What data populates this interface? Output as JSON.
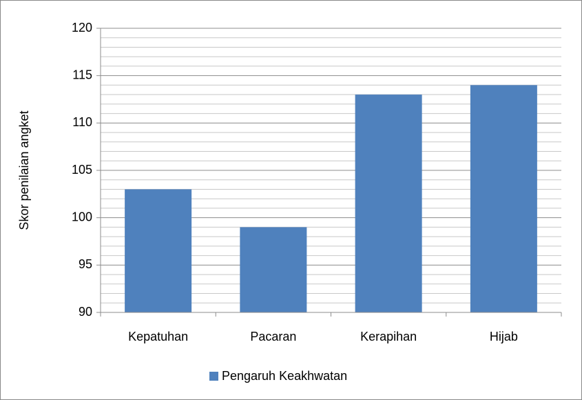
{
  "chart_data": {
    "type": "bar",
    "y_label": "Skor penilaian angket",
    "categories": [
      "Kepatuhan",
      "Pacaran",
      "Kerapihan",
      "Hijab"
    ],
    "series": [
      {
        "name": "Pengaruh Keakhwatan",
        "color": "#4f81bd",
        "values": [
          103,
          99,
          113,
          114
        ]
      }
    ],
    "ylim": [
      90,
      120
    ],
    "yticks": [
      90,
      95,
      100,
      105,
      110,
      115,
      120
    ],
    "grid": true,
    "legend": "bottom"
  }
}
